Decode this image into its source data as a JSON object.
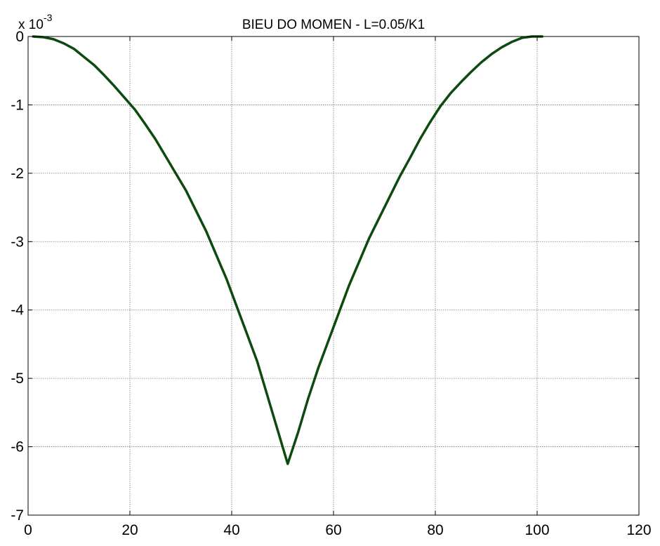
{
  "chart_data": {
    "type": "line",
    "title": "BIEU DO MOMEN - L=0.05/K1",
    "xlabel": "",
    "ylabel": "",
    "y_multiplier_label": {
      "base": "x 10",
      "exponent": "-3"
    },
    "xlim": [
      0,
      120
    ],
    "ylim": [
      -7,
      0
    ],
    "y_scale": 0.001,
    "x_ticks": [
      0,
      20,
      40,
      60,
      80,
      100,
      120
    ],
    "y_ticks": [
      0,
      -1,
      -2,
      -3,
      -4,
      -5,
      -6,
      -7
    ],
    "grid": true,
    "line_color": "#0d4a0d",
    "series": [
      {
        "x": [
          1,
          3,
          5,
          7,
          9,
          11,
          13,
          15,
          17,
          19,
          21,
          23,
          25,
          27,
          29,
          31,
          33,
          35,
          37,
          39,
          41,
          43,
          45,
          47,
          49,
          51,
          53,
          55,
          57,
          59,
          61,
          63,
          65,
          67,
          69,
          71,
          73,
          75,
          77,
          79,
          81,
          83,
          85,
          87,
          89,
          91,
          93,
          95,
          97,
          99,
          101
        ],
        "y": [
          0,
          -0.01,
          -0.04,
          -0.1,
          -0.18,
          -0.3,
          -0.42,
          -0.57,
          -0.73,
          -0.9,
          -1.07,
          -1.28,
          -1.5,
          -1.75,
          -2.0,
          -2.25,
          -2.55,
          -2.85,
          -3.2,
          -3.55,
          -3.95,
          -4.35,
          -4.75,
          -5.25,
          -5.75,
          -6.25,
          -5.8,
          -5.3,
          -4.85,
          -4.45,
          -4.05,
          -3.65,
          -3.3,
          -2.95,
          -2.65,
          -2.35,
          -2.05,
          -1.78,
          -1.5,
          -1.25,
          -1.02,
          -0.83,
          -0.67,
          -0.52,
          -0.38,
          -0.26,
          -0.16,
          -0.08,
          -0.02,
          0,
          0
        ]
      }
    ]
  }
}
